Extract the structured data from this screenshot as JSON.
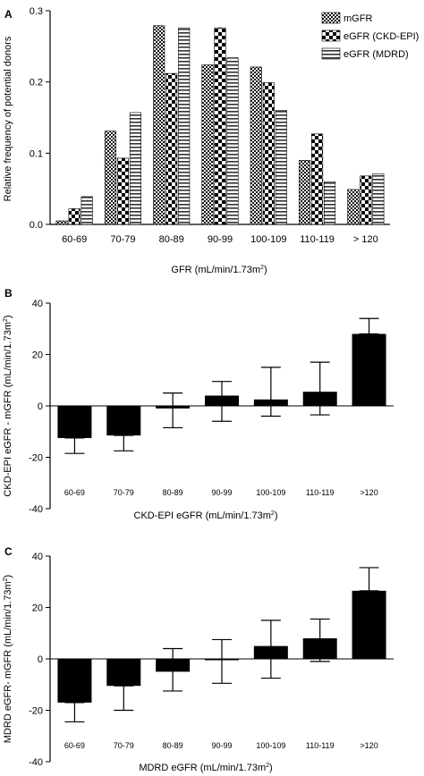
{
  "chart_data": [
    {
      "type": "bar",
      "panel_label": "A",
      "categories": [
        "60-69",
        "70-79",
        "80-89",
        "90-99",
        "100-109",
        "110-119",
        "> 120"
      ],
      "series": [
        {
          "name": "mGFR",
          "pattern": "fine-checker",
          "values": [
            0.005,
            0.131,
            0.279,
            0.224,
            0.221,
            0.09,
            0.049
          ]
        },
        {
          "name": "eGFR (CKD-EPI)",
          "pattern": "coarse-checker",
          "values": [
            0.022,
            0.093,
            0.212,
            0.276,
            0.199,
            0.127,
            0.068
          ]
        },
        {
          "name": "eGFR (MDRD)",
          "pattern": "horizontal-stripes",
          "values": [
            0.039,
            0.157,
            0.276,
            0.234,
            0.16,
            0.06,
            0.071
          ]
        }
      ],
      "xlabel": "GFR (mL/min/1.73m",
      "xlabel_sup": "2",
      "xlabel_end": ")",
      "ylabel": "Relative frequency of potential donors",
      "ylim": [
        0,
        0.3
      ],
      "yticks": [
        "0.0",
        "0.1",
        "0.2",
        "0.3"
      ],
      "legend_position": "top-right"
    },
    {
      "type": "bar",
      "panel_label": "B",
      "categories": [
        "60-69",
        "70-79",
        "80-89",
        "90-99",
        "100-109",
        "110-119",
        ">120"
      ],
      "values": [
        -12.5,
        -11.5,
        -1.0,
        4.0,
        2.5,
        5.5,
        28.0
      ],
      "error_upper": [
        -12.5,
        -11.5,
        5.0,
        9.5,
        15.0,
        17.0,
        34.0
      ],
      "error_lower": [
        -18.5,
        -17.5,
        -8.5,
        -6.0,
        -4.0,
        -3.5,
        28.0
      ],
      "xlabel": "CKD-EPI eGFR (mL/min/1.73m",
      "xlabel_sup": "2",
      "xlabel_end": ")",
      "ylabel": "CKD-EPI eGFR - mGFR (mL/min/1.73m",
      "ylabel_sup": "2",
      "ylabel_end": ")",
      "ylim": [
        -40,
        40
      ],
      "yticks": [
        "-40",
        "-20",
        "0",
        "20",
        "40"
      ]
    },
    {
      "type": "bar",
      "panel_label": "C",
      "categories": [
        "60-69",
        "70-79",
        "80-89",
        "90-99",
        "100-109",
        "110-119",
        ">120"
      ],
      "values": [
        -17.0,
        -10.5,
        -5.0,
        -0.5,
        5.0,
        8.0,
        26.5
      ],
      "error_upper": [
        -17.0,
        -10.5,
        4.0,
        7.5,
        15.0,
        15.5,
        35.5
      ],
      "error_lower": [
        -24.5,
        -20.0,
        -12.5,
        -9.5,
        -7.5,
        -1.0,
        26.5
      ],
      "xlabel": "MDRD eGFR (mL/min/1.73m",
      "xlabel_sup": "2",
      "xlabel_end": ")",
      "ylabel": "MDRD eGFR- mGFR (mL/min/1.73m",
      "ylabel_sup": "2",
      "ylabel_end": ")",
      "ylim": [
        -40,
        40
      ],
      "yticks": [
        "-40",
        "-20",
        "0",
        "20",
        "40"
      ]
    }
  ]
}
